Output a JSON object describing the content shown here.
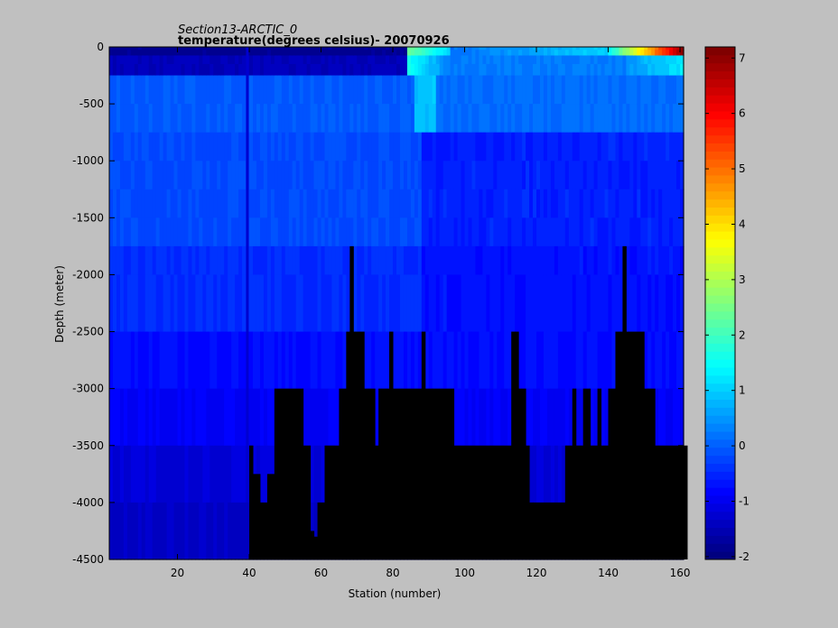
{
  "chart_data": {
    "type": "heatmap",
    "title": "Section13-ARCTIC_0",
    "subtitle": "temperature(degrees  celsius)- 20070926",
    "xlabel": "Station (number)",
    "ylabel": "Depth (meter)",
    "xlim": [
      1,
      161
    ],
    "ylim": [
      -4500,
      0
    ],
    "xticks": [
      20,
      40,
      60,
      80,
      100,
      120,
      140,
      160
    ],
    "yticks": [
      0,
      -500,
      -1000,
      -1500,
      -2000,
      -2500,
      -3000,
      -3500,
      -4000,
      -4500
    ],
    "colorbar": {
      "clim": [
        -2.05,
        7.2
      ],
      "ticks": [
        -2,
        -1,
        0,
        1,
        2,
        3,
        4,
        5,
        6,
        7
      ],
      "colormap": "jet",
      "steps": 64
    },
    "depth_levels": [
      0,
      -25,
      -75,
      -150,
      -250,
      -500,
      -750,
      -1000,
      -1250,
      -1500,
      -1750,
      -2000,
      -2500,
      -3000,
      -3500,
      -4000,
      -4500
    ],
    "bathymetry_mask": {
      "no_data_color": "#000000",
      "bottom_depth_by_station": [
        [
          1,
          39,
          -4500
        ],
        [
          40,
          40,
          -3500
        ],
        [
          41,
          42,
          -3750
        ],
        [
          43,
          44,
          -4000
        ],
        [
          45,
          46,
          -3750
        ],
        [
          47,
          54,
          -3000
        ],
        [
          55,
          56,
          -3500
        ],
        [
          57,
          57,
          -4250
        ],
        [
          58,
          58,
          -4300
        ],
        [
          59,
          60,
          -4000
        ],
        [
          61,
          64,
          -3500
        ],
        [
          65,
          66,
          -3000
        ],
        [
          67,
          67,
          -2500
        ],
        [
          68,
          68,
          -1750
        ],
        [
          69,
          71,
          -2500
        ],
        [
          72,
          74,
          -3000
        ],
        [
          75,
          75,
          -3500
        ],
        [
          76,
          78,
          -3000
        ],
        [
          79,
          79,
          -2500
        ],
        [
          80,
          87,
          -3000
        ],
        [
          88,
          88,
          -2500
        ],
        [
          89,
          90,
          -3000
        ],
        [
          91,
          96,
          -3000
        ],
        [
          97,
          112,
          -3500
        ],
        [
          113,
          113,
          -2500
        ],
        [
          114,
          114,
          -2500
        ],
        [
          115,
          116,
          -3000
        ],
        [
          117,
          117,
          -3500
        ],
        [
          118,
          118,
          -4000
        ],
        [
          119,
          127,
          -4000
        ],
        [
          128,
          129,
          -3500
        ],
        [
          130,
          130,
          -3000
        ],
        [
          131,
          132,
          -3500
        ],
        [
          133,
          134,
          -3000
        ],
        [
          135,
          136,
          -3500
        ],
        [
          137,
          137,
          -3000
        ],
        [
          138,
          139,
          -3500
        ],
        [
          140,
          141,
          -3000
        ],
        [
          142,
          143,
          -2500
        ],
        [
          144,
          144,
          -1750
        ],
        [
          145,
          149,
          -2500
        ],
        [
          150,
          150,
          -3000
        ],
        [
          151,
          152,
          -3000
        ],
        [
          153,
          153,
          -3500
        ],
        [
          154,
          161,
          -3500
        ]
      ]
    }
  }
}
